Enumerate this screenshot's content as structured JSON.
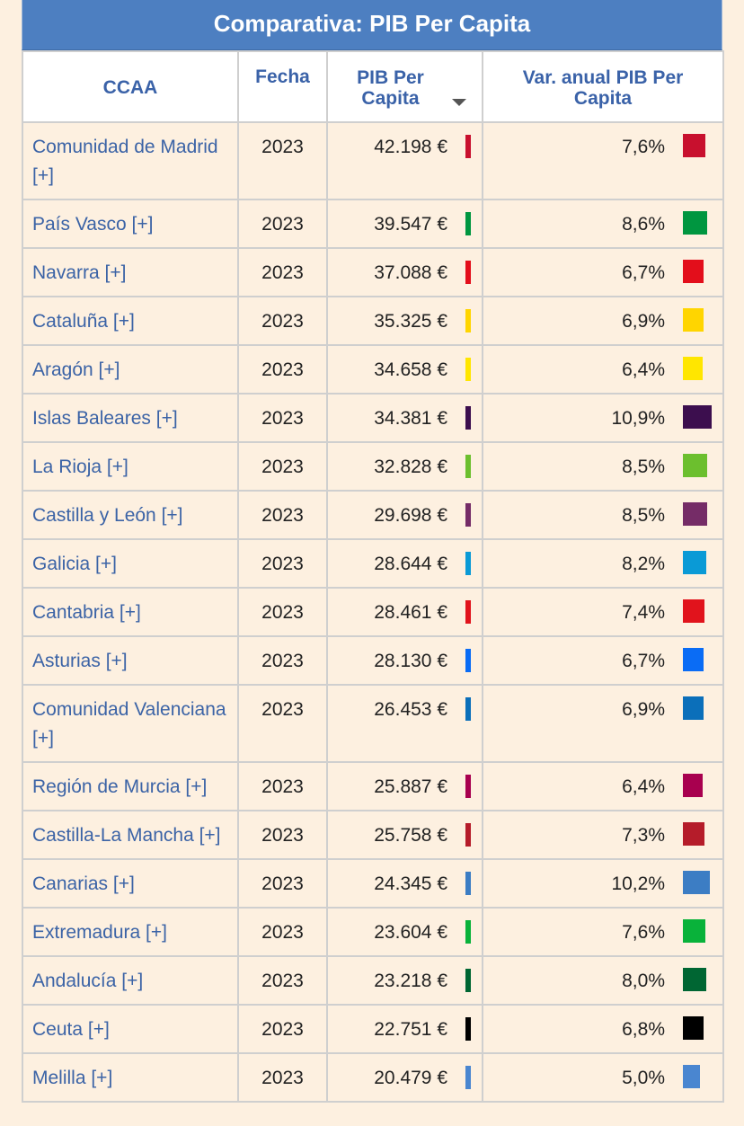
{
  "title": "Comparativa: PIB Per Capita",
  "headers": {
    "ccaa": "CCAA",
    "fecha": "Fecha",
    "pib": "PIB Per Capita",
    "var": "Var. anual PIB Per Capita"
  },
  "rows": [
    {
      "name": "Comunidad de Madrid [+]",
      "year": "2023",
      "pib": "42.198 €",
      "var": "7,6%",
      "color": "#c8102e",
      "var_value": 7.6
    },
    {
      "name": "País Vasco [+]",
      "year": "2023",
      "pib": "39.547 €",
      "var": "8,6%",
      "color": "#009640",
      "var_value": 8.6
    },
    {
      "name": "Navarra [+]",
      "year": "2023",
      "pib": "37.088 €",
      "var": "6,7%",
      "color": "#e30e1b",
      "var_value": 6.7
    },
    {
      "name": "Cataluña [+]",
      "year": "2023",
      "pib": "35.325 €",
      "var": "6,9%",
      "color": "#ffd500",
      "var_value": 6.9
    },
    {
      "name": "Aragón [+]",
      "year": "2023",
      "pib": "34.658 €",
      "var": "6,4%",
      "color": "#ffe600",
      "var_value": 6.4
    },
    {
      "name": "Islas Baleares [+]",
      "year": "2023",
      "pib": "34.381 €",
      "var": "10,9%",
      "color": "#3c0e4e",
      "var_value": 10.9
    },
    {
      "name": "La Rioja [+]",
      "year": "2023",
      "pib": "32.828 €",
      "var": "8,5%",
      "color": "#6cbf2e",
      "var_value": 8.5
    },
    {
      "name": "Castilla y León [+]",
      "year": "2023",
      "pib": "29.698 €",
      "var": "8,5%",
      "color": "#752c67",
      "var_value": 8.5
    },
    {
      "name": "Galicia [+]",
      "year": "2023",
      "pib": "28.644 €",
      "var": "8,2%",
      "color": "#0a9ad6",
      "var_value": 8.2
    },
    {
      "name": "Cantabria [+]",
      "year": "2023",
      "pib": "28.461 €",
      "var": "7,4%",
      "color": "#e1131c",
      "var_value": 7.4
    },
    {
      "name": "Asturias [+]",
      "year": "2023",
      "pib": "28.130 €",
      "var": "6,7%",
      "color": "#0a6cf5",
      "var_value": 6.7
    },
    {
      "name": "Comunidad Valenciana [+]",
      "year": "2023",
      "pib": "26.453 €",
      "var": "6,9%",
      "color": "#0b6fba",
      "var_value": 6.9
    },
    {
      "name": "Región de Murcia [+]",
      "year": "2023",
      "pib": "25.887 €",
      "var": "6,4%",
      "color": "#a8004f",
      "var_value": 6.4
    },
    {
      "name": "Castilla-La Mancha [+]",
      "year": "2023",
      "pib": "25.758 €",
      "var": "7,3%",
      "color": "#b51c2a",
      "var_value": 7.3
    },
    {
      "name": "Canarias [+]",
      "year": "2023",
      "pib": "24.345 €",
      "var": "10,2%",
      "color": "#3c7dc4",
      "var_value": 10.2
    },
    {
      "name": "Extremadura [+]",
      "year": "2023",
      "pib": "23.604 €",
      "var": "7,6%",
      "color": "#09b23a",
      "var_value": 7.6
    },
    {
      "name": "Andalucía [+]",
      "year": "2023",
      "pib": "23.218 €",
      "var": "8,0%",
      "color": "#006633",
      "var_value": 8.0
    },
    {
      "name": "Ceuta [+]",
      "year": "2023",
      "pib": "22.751 €",
      "var": "6,8%",
      "color": "#000000",
      "var_value": 6.8
    },
    {
      "name": "Melilla [+]",
      "year": "2023",
      "pib": "20.479 €",
      "var": "5,0%",
      "color": "#4a86d0",
      "var_value": 5.0
    }
  ]
}
